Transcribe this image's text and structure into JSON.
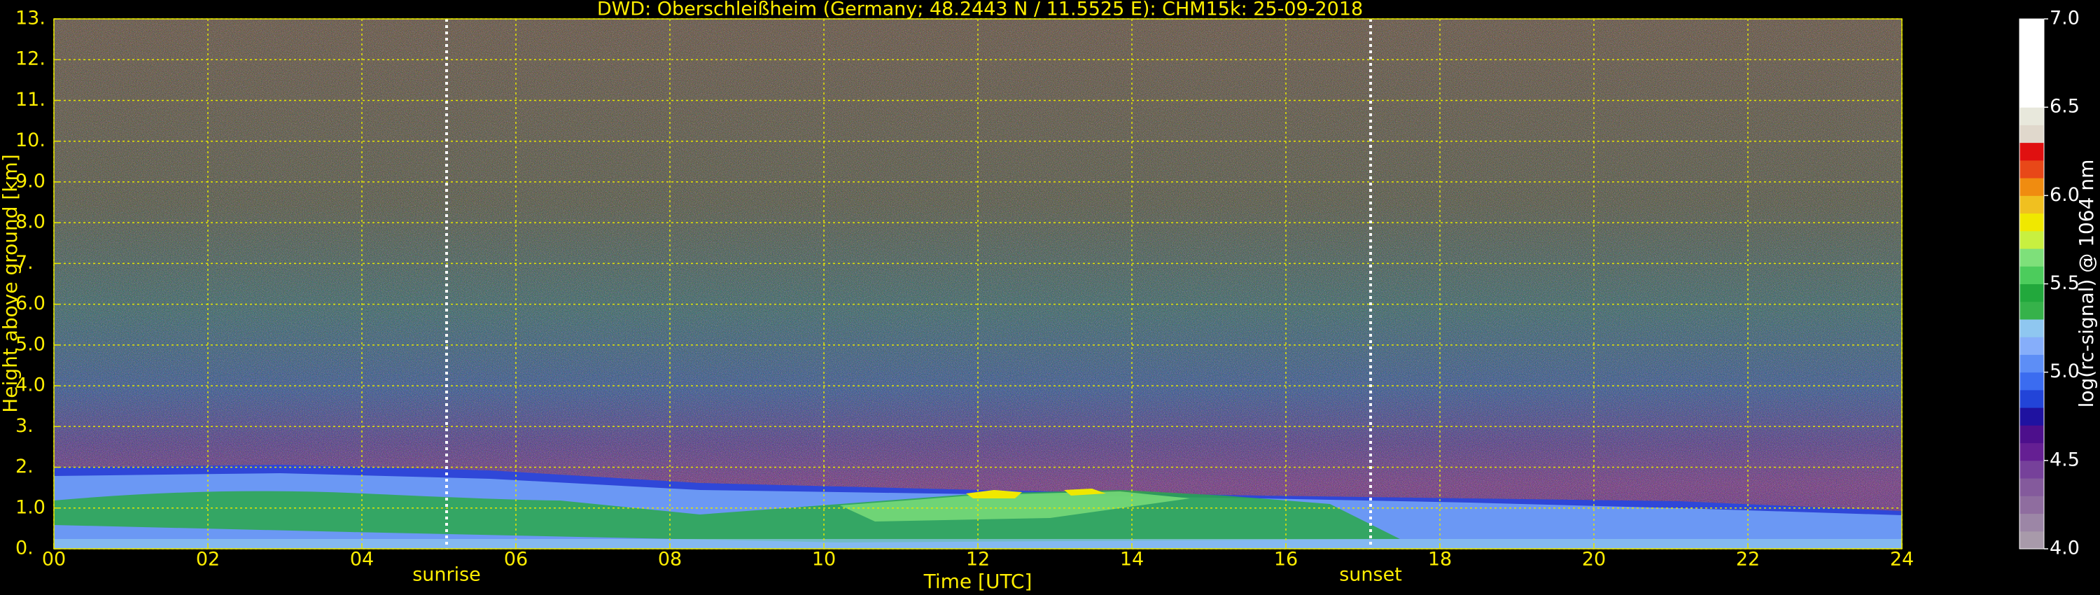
{
  "chart_data": {
    "type": "heatmap",
    "title": "DWD: Oberschleißheim (Germany; 48.2443 N / 11.5525 E):    CHM15k: 25-09-2018",
    "x_label": "Time [UTC]",
    "y_label": "Height above ground [km]",
    "xlim": [
      0,
      24
    ],
    "xticks": [
      {
        "value": 0,
        "label": "00"
      },
      {
        "value": 2,
        "label": "02"
      },
      {
        "value": 4,
        "label": "04"
      },
      {
        "value": 6,
        "label": "06"
      },
      {
        "value": 8,
        "label": "08"
      },
      10,
      12,
      14,
      16,
      18,
      20,
      22,
      24
    ],
    "ylim": [
      0,
      13
    ],
    "yticks": [
      {
        "value": 0,
        "label": "0."
      },
      {
        "value": 1,
        "label": "1.0"
      },
      {
        "value": 2,
        "label": "2."
      },
      {
        "value": 3,
        "label": "3."
      },
      {
        "value": 4,
        "label": "4.0"
      },
      {
        "value": 5,
        "label": "5.0"
      },
      {
        "value": 6,
        "label": "6.0"
      },
      {
        "value": 7,
        "label": "7."
      },
      {
        "value": 8,
        "label": "8.0"
      },
      {
        "value": 9,
        "label": "9.0"
      },
      {
        "value": 10,
        "label": "10."
      },
      {
        "value": 11,
        "label": "11."
      },
      {
        "value": 12,
        "label": "12."
      },
      {
        "value": 13,
        "label": "13."
      }
    ],
    "grid": true,
    "grid_color": "#e6e600",
    "text_color": "#ffee00",
    "annotations": [
      {
        "text": "sunrise",
        "x": 5.1
      },
      {
        "text": "sunset",
        "x": 17.1
      }
    ],
    "colorbar": {
      "label": "log(rc-signal) @ 1064 nm",
      "lim": [
        4.0,
        7.0
      ],
      "ticks": [
        {
          "value": 4.0,
          "label": "4.0"
        },
        {
          "value": 4.5,
          "label": "4.5"
        },
        {
          "value": 5.0,
          "label": "5.0"
        },
        {
          "value": 5.5,
          "label": "5.5"
        },
        {
          "value": 6.0,
          "label": "6.0"
        },
        {
          "value": 6.5,
          "label": "6.5"
        },
        {
          "value": 7.0,
          "label": "7.0"
        }
      ],
      "colors": [
        "#a89aaa",
        "#9c86a6",
        "#8f6d9f",
        "#845a9c",
        "#76419a",
        "#651f93",
        "#4d0f8c",
        "#1f12a0",
        "#2244d8",
        "#3b6cf0",
        "#5d8ef6",
        "#86aefa",
        "#8fc7f0",
        "#36b24a",
        "#22a83c",
        "#4ccc5c",
        "#7ee07a",
        "#c8f040",
        "#f0e800",
        "#f0c020",
        "#f08c10",
        "#e84818",
        "#e01010",
        "#e0d8cc",
        "#e8e8dc",
        "#ffffff",
        "#ffffff",
        "#ffffff",
        "#ffffff",
        "#ffffff"
      ]
    }
  }
}
